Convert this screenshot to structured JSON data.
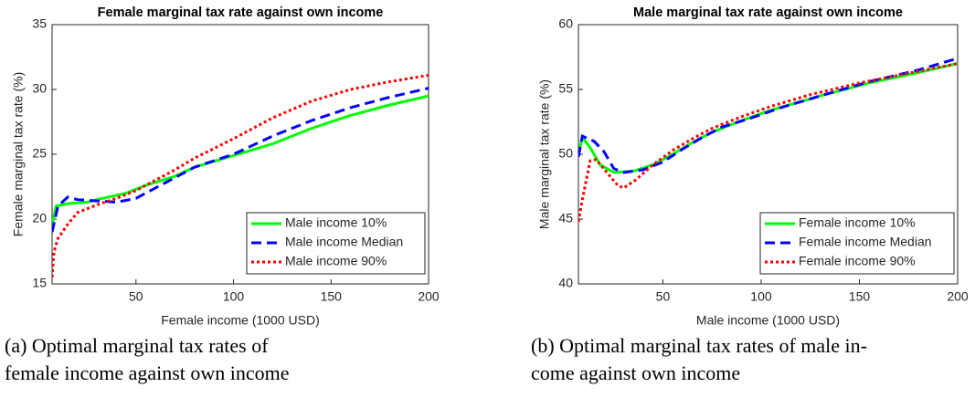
{
  "chart_data": [
    {
      "type": "line",
      "title": "Female marginal tax rate against own income",
      "x_label": "Female income (1000 USD)",
      "y_label": "Female marginal tax rate (%)",
      "xlim": [
        7,
        200
      ],
      "xticks": [
        50,
        100,
        150,
        200
      ],
      "ylim": [
        15,
        35
      ],
      "yticks": [
        15,
        20,
        25,
        30,
        35
      ],
      "legend": "lower right",
      "series": [
        {
          "name": "Male income 10%",
          "color": "#00ff00",
          "style": "solid",
          "x": [
            7,
            9,
            15,
            25,
            30,
            45,
            55,
            70,
            80,
            100,
            120,
            140,
            160,
            180,
            200
          ],
          "values": [
            19.5,
            21,
            21.2,
            21.3,
            21.5,
            22,
            22.6,
            23.3,
            24,
            24.9,
            25.8,
            27,
            28,
            28.8,
            29.5
          ]
        },
        {
          "name": "Male income Median",
          "color": "#0000ff",
          "style": "dashed",
          "x": [
            7,
            10,
            15,
            20,
            30,
            40,
            50,
            60,
            70,
            80,
            100,
            120,
            140,
            160,
            180,
            200
          ],
          "values": [
            19,
            21,
            21.7,
            21.5,
            21.4,
            21.3,
            21.6,
            22.4,
            23.2,
            24,
            25,
            26.4,
            27.6,
            28.6,
            29.4,
            30.1
          ]
        },
        {
          "name": "Male income 90%",
          "color": "#ff0000",
          "style": "dotted",
          "x": [
            7,
            8,
            10,
            15,
            20,
            30,
            40,
            50,
            60,
            70,
            80,
            100,
            120,
            140,
            160,
            180,
            200
          ],
          "values": [
            15.5,
            17.5,
            18.5,
            19.6,
            20.5,
            21.1,
            21.6,
            22.2,
            23,
            23.8,
            24.7,
            26.2,
            27.8,
            29.1,
            30,
            30.6,
            31.1
          ]
        }
      ]
    },
    {
      "type": "line",
      "title": "Male marginal tax rate against own income",
      "x_label": "Male income (1000 USD)",
      "y_label": "Male marginal tax rate (%)",
      "xlim": [
        7,
        200
      ],
      "xticks": [
        50,
        100,
        150,
        200
      ],
      "ylim": [
        40,
        60
      ],
      "yticks": [
        40,
        45,
        50,
        55,
        60
      ],
      "legend": "lower right",
      "series": [
        {
          "name": "Female income 10%",
          "color": "#00ff00",
          "style": "solid",
          "x": [
            7,
            9,
            13,
            18,
            25,
            35,
            45,
            55,
            65,
            75,
            90,
            105,
            130,
            155,
            180,
            200
          ],
          "values": [
            50,
            51.3,
            50.5,
            49.2,
            48.6,
            48.7,
            49.2,
            50,
            50.9,
            51.7,
            52.6,
            53.4,
            54.5,
            55.5,
            56.3,
            57
          ]
        },
        {
          "name": "Female income Median",
          "color": "#0000ff",
          "style": "dashed",
          "x": [
            7,
            9,
            15,
            20,
            25,
            30,
            40,
            50,
            60,
            70,
            80,
            95,
            110,
            130,
            155,
            180,
            200
          ],
          "values": [
            49.8,
            51.4,
            51,
            50.2,
            48.9,
            48.6,
            48.8,
            49.4,
            50.4,
            51.3,
            52.1,
            52.8,
            53.6,
            54.5,
            55.6,
            56.5,
            57.4
          ]
        },
        {
          "name": "Female income 90%",
          "color": "#ff0000",
          "style": "dotted",
          "x": [
            7,
            9,
            13,
            16,
            22,
            27,
            30,
            36,
            45,
            55,
            65,
            75,
            90,
            105,
            125,
            150,
            180,
            200
          ],
          "values": [
            44.8,
            46.5,
            49.5,
            49.6,
            48.5,
            47.6,
            47.4,
            48,
            49.2,
            50.3,
            51.2,
            52,
            52.9,
            53.7,
            54.6,
            55.5,
            56.4,
            57
          ]
        }
      ]
    }
  ],
  "captions": [
    [
      "(a) Optimal marginal tax rates of",
      "female income against own income"
    ],
    [
      "(b) Optimal marginal tax rates of male in-",
      "come against own income"
    ]
  ]
}
